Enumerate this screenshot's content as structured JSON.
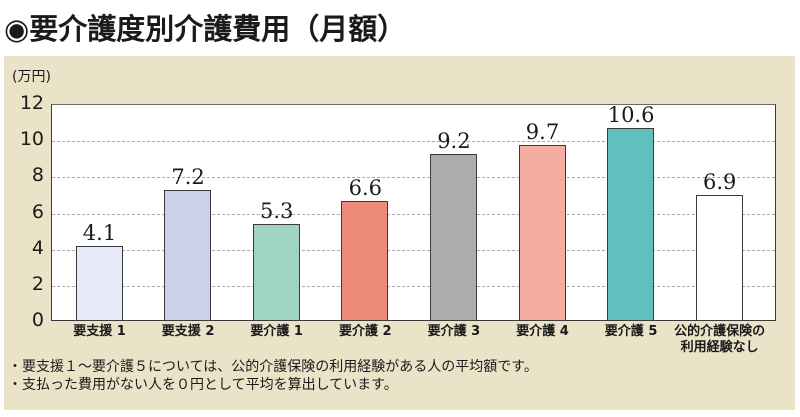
{
  "title": "◉要介護度別介護費用（月額）",
  "unit_label": "(万円)",
  "notes": [
    "・要支援１～要介護５については、公的介護保険の利用経験がある人の平均額です。",
    "・支払った費用がない人を０円として平均を算出しています。"
  ],
  "chart_data": {
    "type": "bar",
    "title": "要介護度別介護費用（月額）",
    "xlabel": "",
    "ylabel": "(万円)",
    "ylim": [
      0,
      12
    ],
    "yticks": [
      "0",
      "2",
      "4",
      "6",
      "8",
      "10",
      "12"
    ],
    "grid": true,
    "categories": [
      "要支援 1",
      "要支援 2",
      "要介護 1",
      "要介護 2",
      "要介護 3",
      "要介護 4",
      "要介護 5",
      "公的介護保険の 利用経験なし"
    ],
    "values": [
      4.1,
      7.2,
      5.3,
      6.6,
      9.2,
      9.7,
      10.6,
      6.9
    ],
    "value_labels": [
      "4.1",
      "7.2",
      "5.3",
      "6.6",
      "9.2",
      "9.7",
      "10.6",
      "6.9"
    ],
    "colors": [
      "#e6eaf8",
      "#ccd0ea",
      "#9ed4c0",
      "#ee8b78",
      "#acacac",
      "#f4ada0",
      "#5fc0bd",
      "#ffffff"
    ],
    "xlabel_lines": [
      [
        "要支援 1"
      ],
      [
        "要支援 2"
      ],
      [
        "要介護 1"
      ],
      [
        "要介護 2"
      ],
      [
        "要介護 3"
      ],
      [
        "要介護 4"
      ],
      [
        "要介護 5"
      ],
      [
        "公的介護保険の",
        "利用経験なし"
      ]
    ]
  }
}
